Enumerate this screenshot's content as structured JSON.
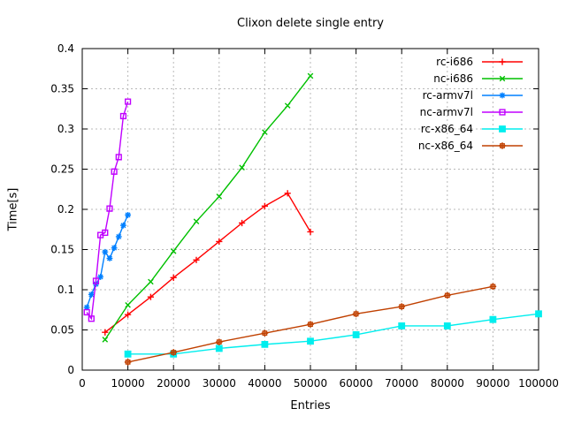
{
  "chart_data": {
    "type": "line",
    "title": "Clixon delete single entry",
    "xlabel": "Entries",
    "ylabel": "Time[s]",
    "xlim": [
      0,
      100000
    ],
    "ylim": [
      0,
      0.4
    ],
    "xticks": [
      0,
      10000,
      20000,
      30000,
      40000,
      50000,
      60000,
      70000,
      80000,
      90000,
      100000
    ],
    "yticks": [
      0,
      0.05,
      0.1,
      0.15,
      0.2,
      0.25,
      0.3,
      0.35,
      0.4
    ],
    "grid": true,
    "grid_color": "#b8b8b8",
    "axis_color": "#000000",
    "legend_position": "top-right-inside",
    "series": [
      {
        "name": "rc-i686",
        "color": "#ff0000",
        "marker": "plus",
        "x": [
          5000,
          10000,
          15000,
          20000,
          25000,
          30000,
          35000,
          40000,
          45000,
          50000
        ],
        "y": [
          0.047,
          0.069,
          0.091,
          0.115,
          0.137,
          0.16,
          0.183,
          0.204,
          0.22,
          0.172
        ]
      },
      {
        "name": "nc-i686",
        "color": "#00c000",
        "marker": "cross",
        "x": [
          5000,
          10000,
          15000,
          20000,
          25000,
          30000,
          35000,
          40000,
          45000,
          50000
        ],
        "y": [
          0.038,
          0.081,
          0.11,
          0.148,
          0.185,
          0.216,
          0.252,
          0.296,
          0.329,
          0.366
        ]
      },
      {
        "name": "rc-armv7l",
        "color": "#0080ff",
        "marker": "asterisk",
        "x": [
          1000,
          2000,
          3000,
          4000,
          5000,
          6000,
          7000,
          8000,
          9000,
          10000
        ],
        "y": [
          0.078,
          0.094,
          0.107,
          0.116,
          0.147,
          0.139,
          0.152,
          0.166,
          0.18,
          0.193
        ]
      },
      {
        "name": "nc-armv7l",
        "color": "#c000ff",
        "marker": "square-open",
        "x": [
          1000,
          2000,
          3000,
          4000,
          5000,
          6000,
          7000,
          8000,
          9000,
          10000
        ],
        "y": [
          0.072,
          0.064,
          0.111,
          0.168,
          0.171,
          0.201,
          0.247,
          0.265,
          0.316,
          0.334
        ]
      },
      {
        "name": "rc-x86_64",
        "color": "#00eeee",
        "marker": "square-filled",
        "x": [
          10000,
          20000,
          30000,
          40000,
          50000,
          60000,
          70000,
          80000,
          90000,
          100000
        ],
        "y": [
          0.02,
          0.02,
          0.027,
          0.032,
          0.036,
          0.044,
          0.055,
          0.055,
          0.063,
          0.07
        ]
      },
      {
        "name": "nc-x86_64",
        "color": "#c04000",
        "marker": "boxplus",
        "x": [
          10000,
          20000,
          30000,
          40000,
          50000,
          60000,
          70000,
          80000,
          90000
        ],
        "y": [
          0.01,
          0.022,
          0.035,
          0.046,
          0.057,
          0.07,
          0.079,
          0.093,
          0.104
        ]
      }
    ]
  }
}
